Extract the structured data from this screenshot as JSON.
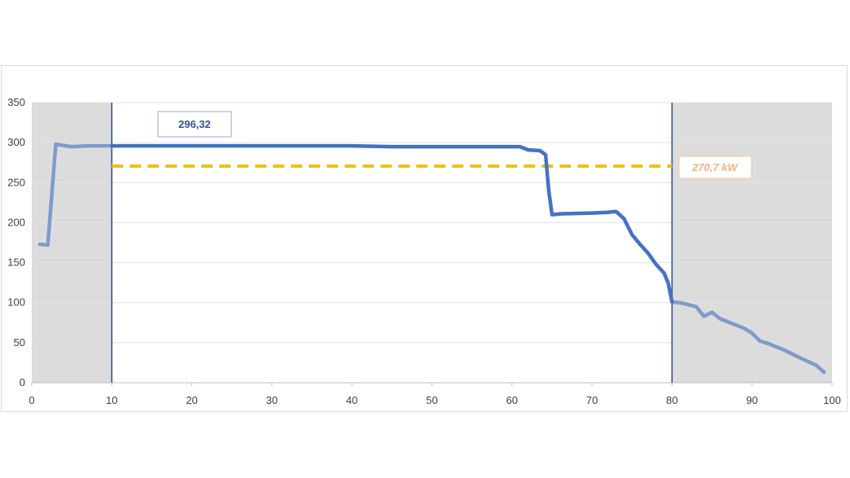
{
  "chart_data": {
    "type": "line",
    "title": "",
    "xlabel": "",
    "ylabel": "",
    "xlim": [
      0,
      100
    ],
    "ylim": [
      0,
      350
    ],
    "xticks": [
      0,
      10,
      20,
      30,
      40,
      50,
      60,
      70,
      80,
      90,
      100
    ],
    "yticks": [
      0,
      50,
      100,
      150,
      200,
      250,
      300,
      350
    ],
    "grid": true,
    "shaded_ranges": [
      [
        0,
        10
      ],
      [
        80,
        100
      ]
    ],
    "vertical_markers": [
      10,
      80
    ],
    "average_line": {
      "value": 270.7,
      "from": 10,
      "to": 80,
      "color": "#f0c018",
      "style": "dashed"
    },
    "annotations": [
      {
        "text": "296,32",
        "color": "#2f5597"
      },
      {
        "text": "270,7 kW",
        "color": "#f4b183"
      }
    ],
    "colors": {
      "line": "#4472c4",
      "line_outside": "#7f9bcc",
      "shade": "#dcdcdc",
      "marker": "#2f5597"
    },
    "series": [
      {
        "points": [
          [
            1,
            173
          ],
          [
            2,
            172
          ],
          [
            3,
            298
          ],
          [
            5,
            295
          ],
          [
            7,
            296
          ],
          [
            10,
            296
          ],
          [
            15,
            296
          ],
          [
            20,
            296
          ],
          [
            25,
            296
          ],
          [
            30,
            296
          ],
          [
            35,
            296
          ],
          [
            40,
            296
          ],
          [
            45,
            295
          ],
          [
            50,
            295
          ],
          [
            55,
            295
          ],
          [
            61,
            295
          ],
          [
            62,
            291
          ],
          [
            63.5,
            290
          ],
          [
            64.2,
            285
          ],
          [
            64.6,
            240
          ],
          [
            65,
            210
          ],
          [
            66,
            211
          ],
          [
            70,
            212
          ],
          [
            72,
            213
          ],
          [
            73,
            214
          ],
          [
            74,
            205
          ],
          [
            75,
            185
          ],
          [
            76,
            173
          ],
          [
            77,
            162
          ],
          [
            78,
            148
          ],
          [
            79,
            137
          ],
          [
            79.5,
            125
          ],
          [
            80,
            101
          ],
          [
            81,
            100
          ],
          [
            83,
            95
          ],
          [
            84,
            83
          ],
          [
            85,
            88
          ],
          [
            86,
            80
          ],
          [
            88,
            72
          ],
          [
            89,
            68
          ],
          [
            90,
            62
          ],
          [
            91,
            52
          ],
          [
            92,
            49
          ],
          [
            94,
            41
          ],
          [
            96,
            31
          ],
          [
            98,
            22
          ],
          [
            99,
            13
          ]
        ]
      }
    ]
  }
}
